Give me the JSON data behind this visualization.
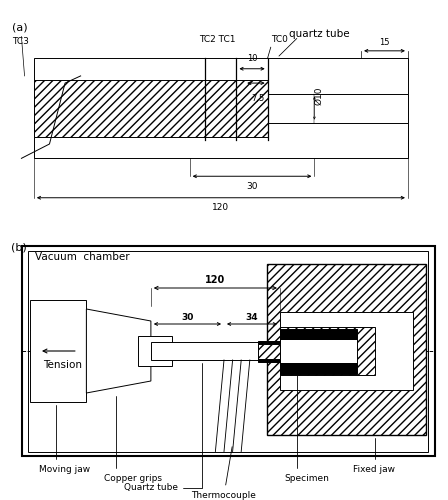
{
  "fig_width": 4.48,
  "fig_height": 5.0,
  "dpi": 100,
  "bg_color": "#ffffff",
  "lc": "#000000",
  "lw": 0.7,
  "label_a": "(a)",
  "label_b": "(b)",
  "pa": {
    "tc3": "TC3",
    "tc21": "TC2 TC1",
    "tc0": "TC0",
    "qt_label": "quartz tube",
    "d10": "10",
    "d75": "7,5",
    "d15": "15",
    "dphi": "Ø10",
    "d30": "30",
    "d120": "120"
  },
  "pb": {
    "vac": "Vacuum  chamber",
    "tension": "Tension",
    "d120": "120",
    "d30": "30",
    "d34": "34",
    "lmj": "Moving jaw",
    "lcg": "Copper grips",
    "lqt": "Quartz tube",
    "ltc": "Thermocouple",
    "lsp": "Specimen",
    "lfj": "Fixed jaw"
  }
}
